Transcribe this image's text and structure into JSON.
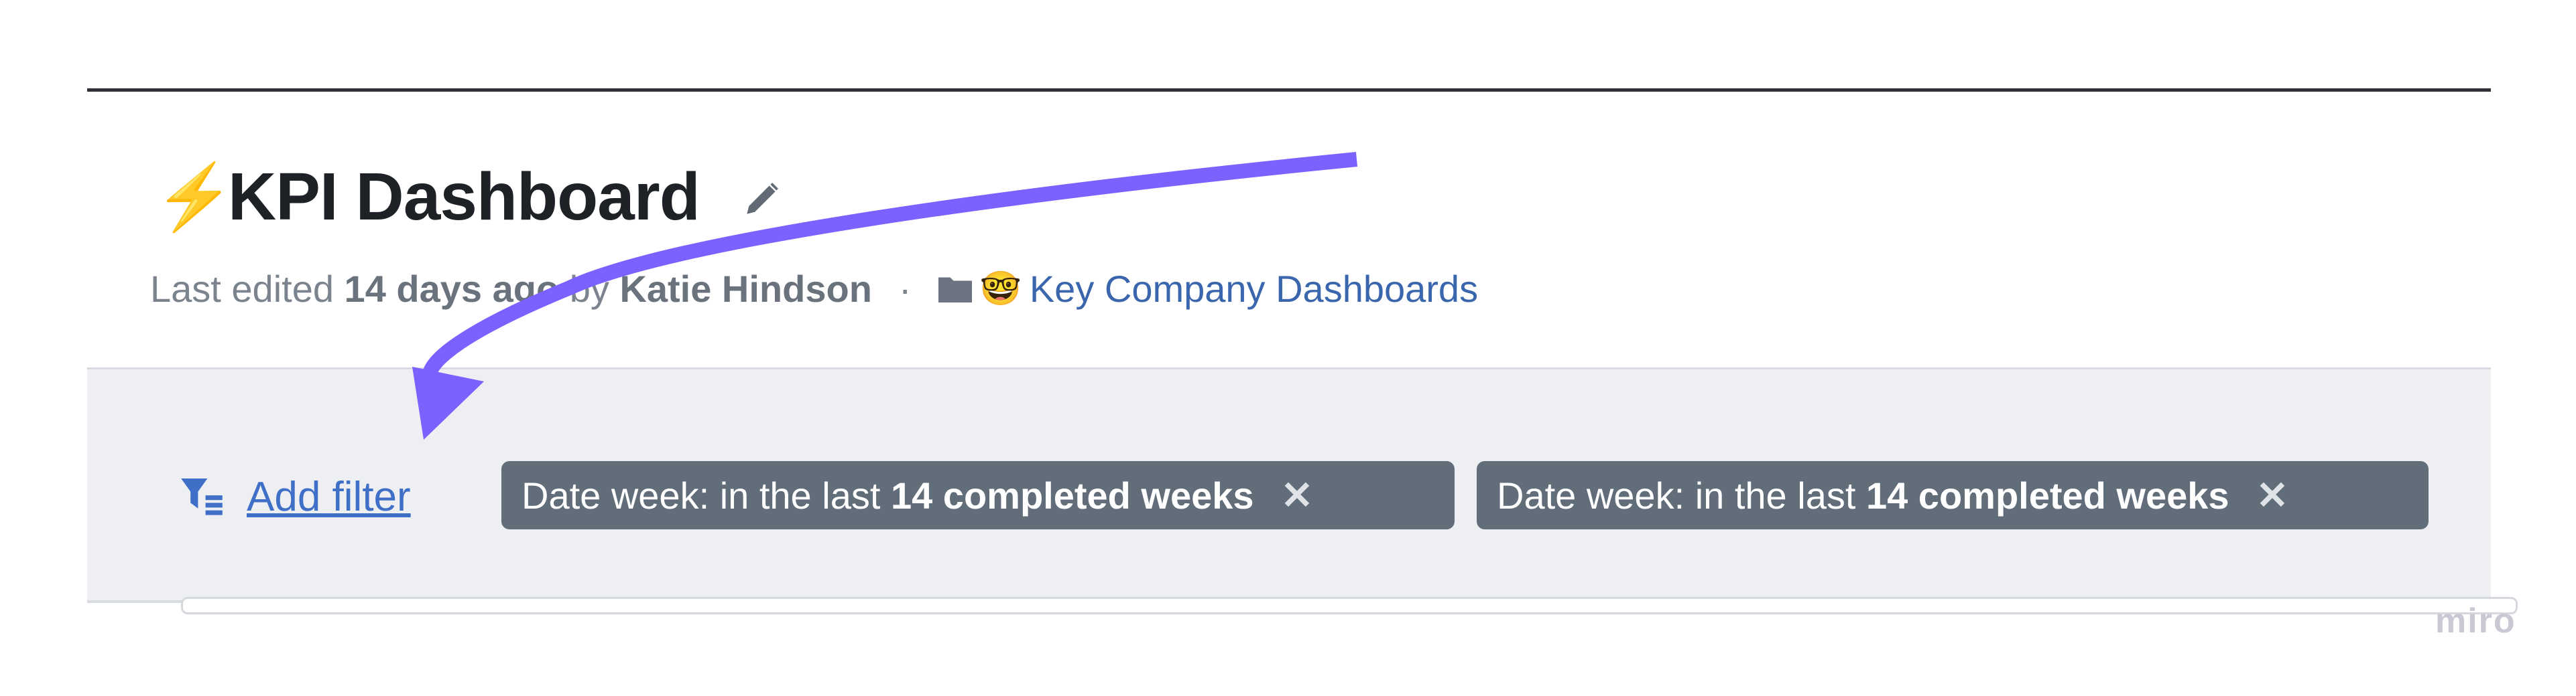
{
  "header": {
    "icon": "lightning-icon",
    "title": "KPI Dashboard",
    "edit_icon": "pencil-icon",
    "last_edited_prefix": "Last edited",
    "last_edited_when": "14 days ago",
    "by": "by",
    "author": "Katie Hindson",
    "separator": "·",
    "collection_emoji": "🤓",
    "collection": "Key Company Dashboards"
  },
  "filters": {
    "add_label": "Add filter",
    "chips": [
      {
        "prefix": "Date week: in the last",
        "value": "14 completed weeks",
        "remove": "✕"
      },
      {
        "prefix": "Date week: in the last",
        "value": "14 completed weeks",
        "remove": "✕"
      }
    ]
  },
  "annotation": {
    "arrow_color": "#7b61ff"
  },
  "watermark": "miro",
  "colors": {
    "chip": "#626d7a",
    "link": "#3a66ad",
    "background": "#edeff3"
  }
}
